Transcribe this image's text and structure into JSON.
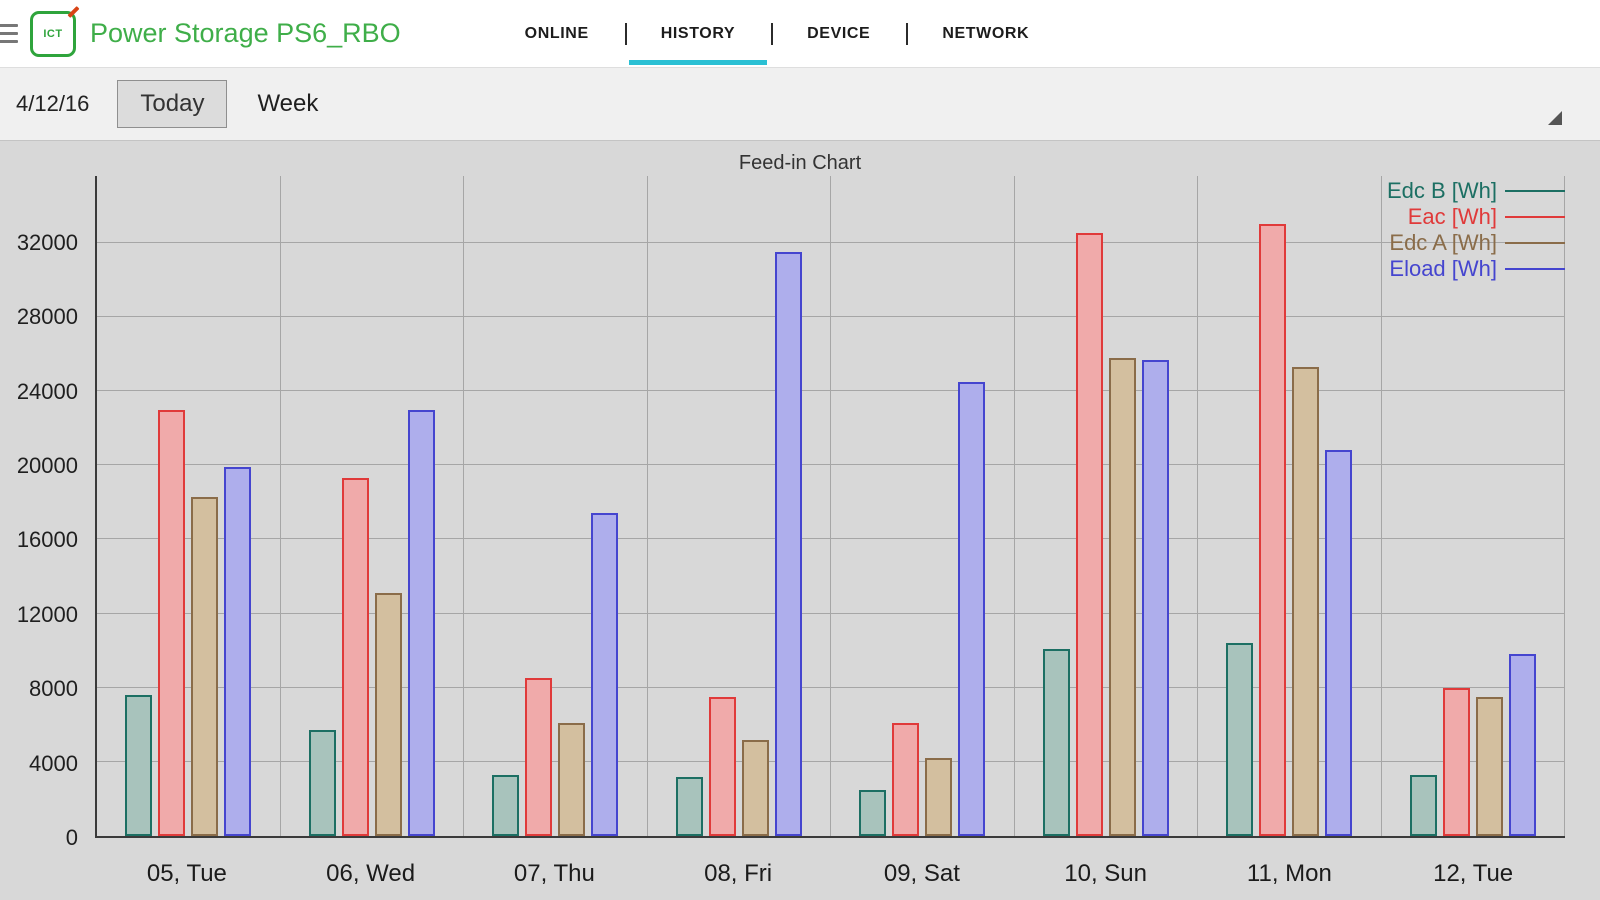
{
  "header": {
    "logo_text": "ICT",
    "title": "Power Storage PS6_RBO",
    "tabs": [
      {
        "label": "ONLINE",
        "active": false
      },
      {
        "label": "HISTORY",
        "active": true
      },
      {
        "label": "DEVICE",
        "active": false
      },
      {
        "label": "NETWORK",
        "active": false
      }
    ],
    "title_color": "#3fae49",
    "active_tab_color": "#2bc0d4"
  },
  "toolbar": {
    "date": "4/12/16",
    "today_label": "Today",
    "range_value": "Week"
  },
  "chart_data": {
    "type": "bar",
    "title": "Feed-in Chart",
    "categories": [
      "05, Tue",
      "06, Wed",
      "07, Thu",
      "08, Fri",
      "09, Sat",
      "10, Sun",
      "11, Mon",
      "12, Tue"
    ],
    "series": [
      {
        "name": "Edc B [Wh]",
        "color": "#1c6f63",
        "fill": "#a8c3bc",
        "values": [
          7600,
          5700,
          3300,
          3200,
          2500,
          10100,
          10400,
          3300
        ]
      },
      {
        "name": "Eac [Wh]",
        "color": "#e03a3a",
        "fill": "#f0aaaa",
        "values": [
          23000,
          19300,
          8500,
          7500,
          6100,
          32500,
          33000,
          8000
        ]
      },
      {
        "name": "Edc A [Wh]",
        "color": "#8a6c49",
        "fill": "#d3bf9f",
        "values": [
          18300,
          13100,
          6100,
          5200,
          4200,
          25800,
          25300,
          7500
        ]
      },
      {
        "name": "Eload [Wh]",
        "color": "#4545cf",
        "fill": "#aeaeec",
        "values": [
          19900,
          23000,
          17400,
          31500,
          24500,
          25700,
          20800,
          9800
        ]
      }
    ],
    "xlabel": "",
    "ylabel": "",
    "yticks": [
      0,
      4000,
      8000,
      12000,
      16000,
      20000,
      24000,
      28000,
      32000
    ],
    "ylim": [
      0,
      35600
    ],
    "grid": true,
    "legend_position": "top-right"
  }
}
